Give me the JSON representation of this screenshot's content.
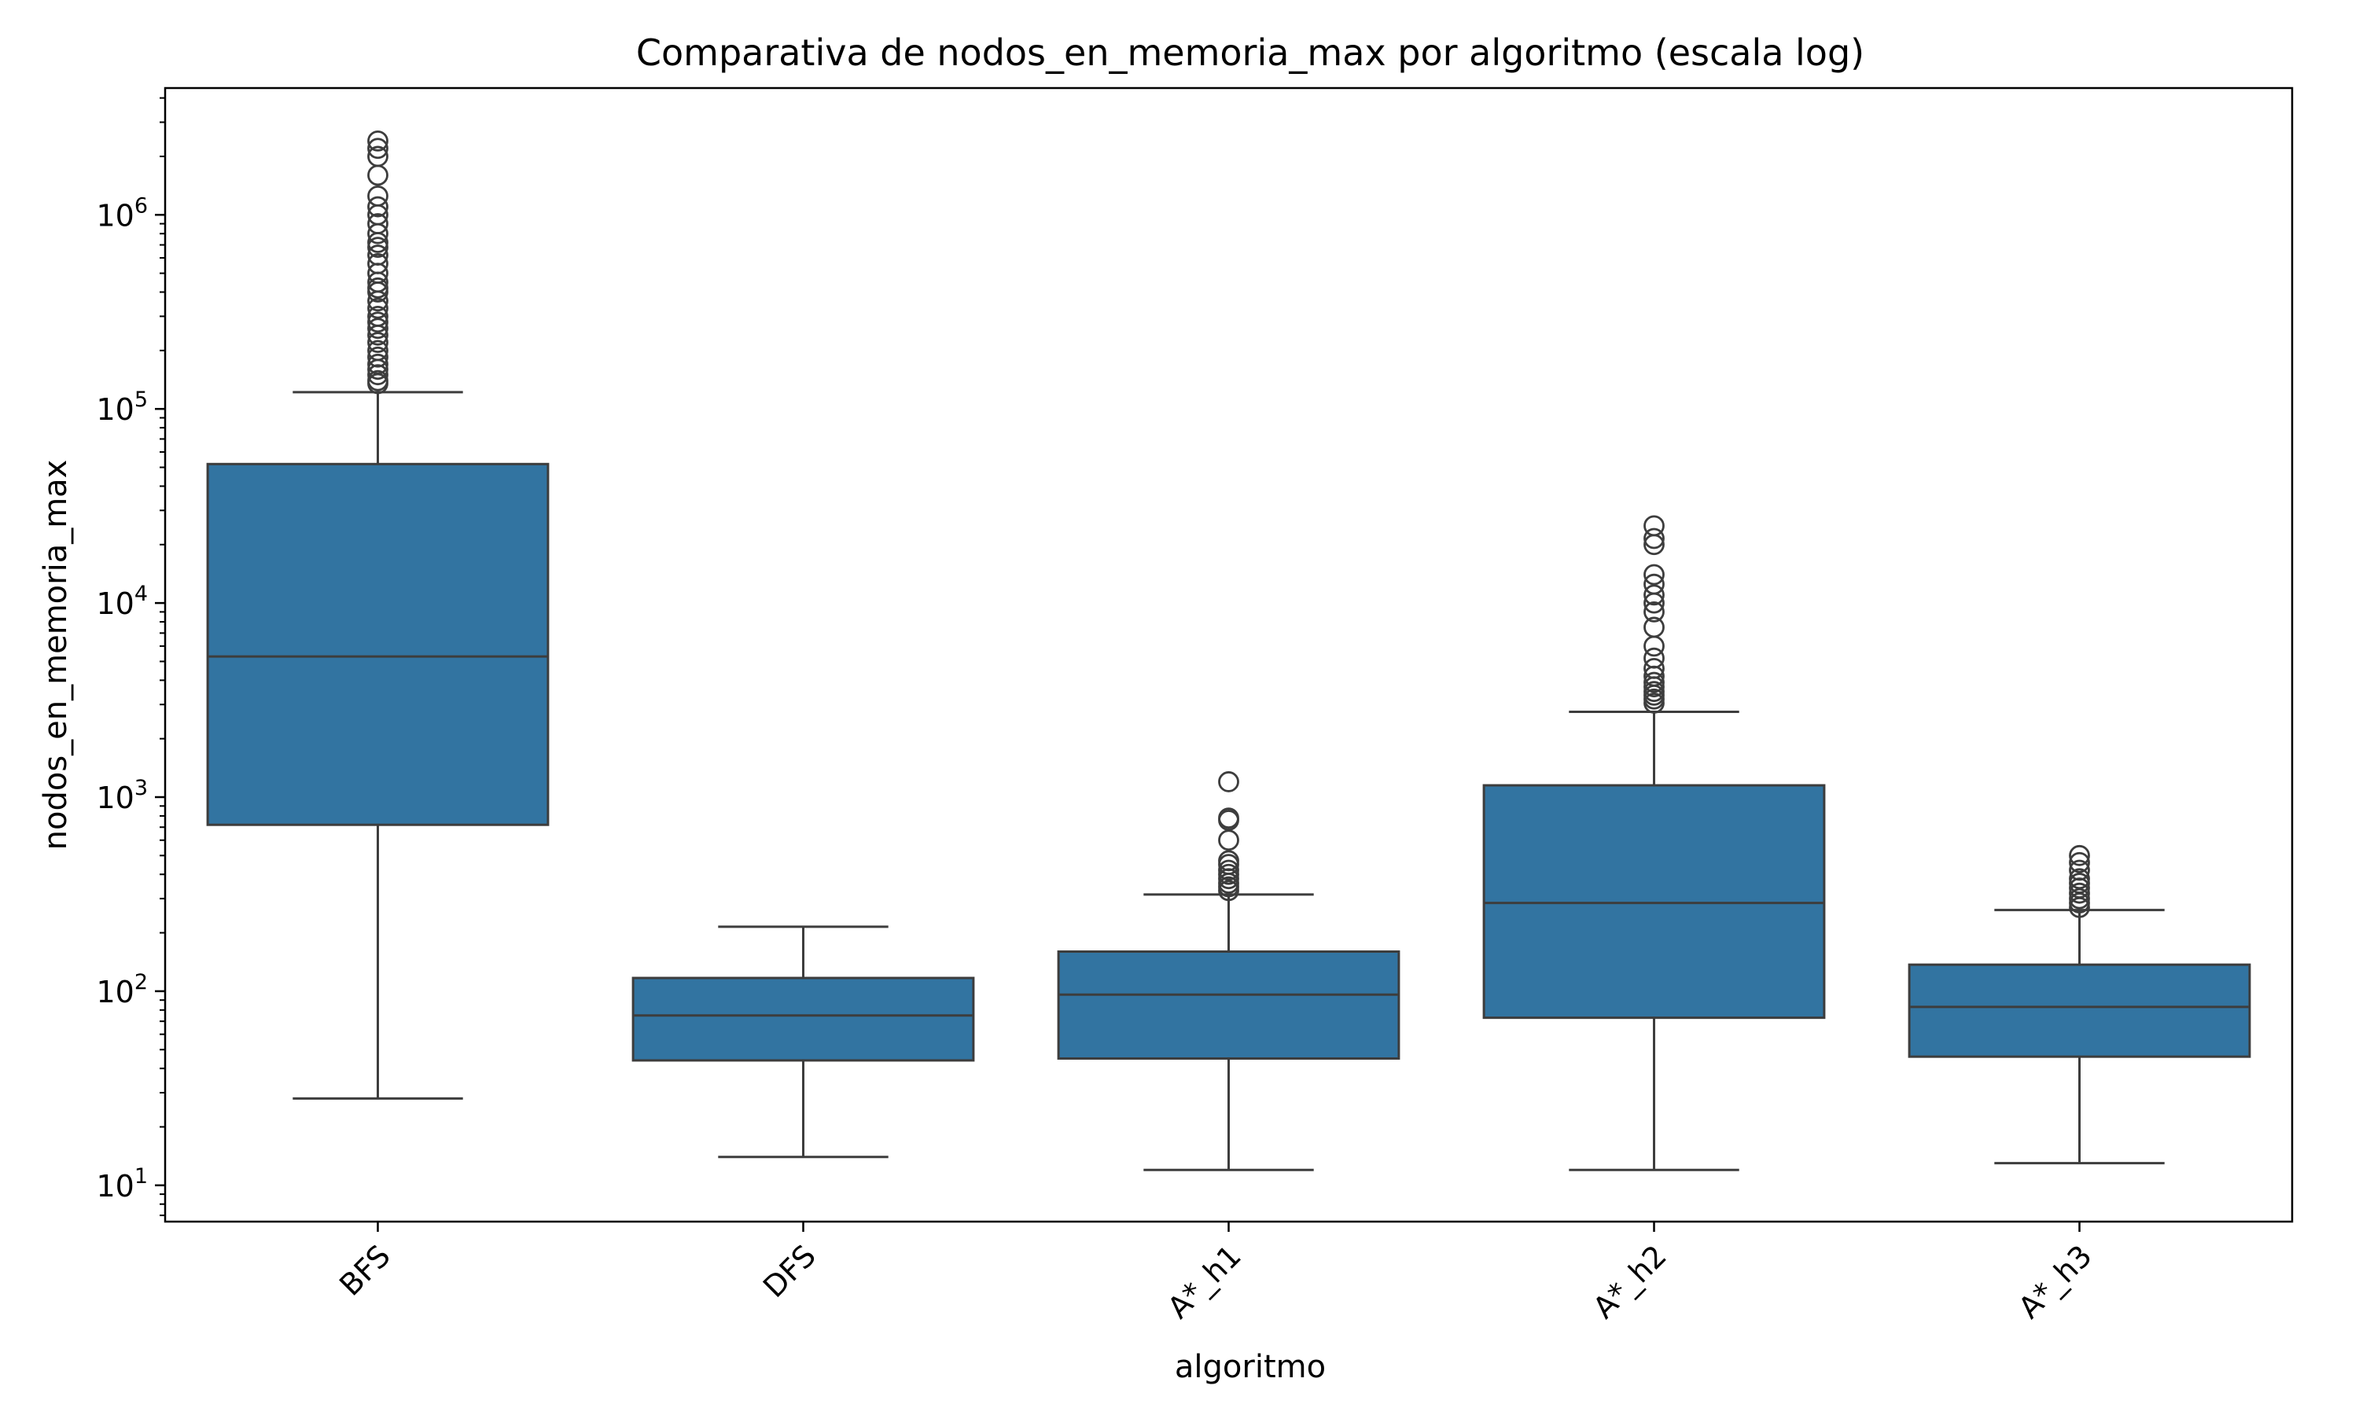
{
  "chart_data": {
    "type": "box",
    "title": "Comparativa de nodos_en_memoria_max por algoritmo (escala log)",
    "xlabel": "algoritmo",
    "ylabel": "nodos_en_memoria_max",
    "yscale": "log",
    "ylim": [
      6.5,
      4500000
    ],
    "yticks": [
      {
        "value": 10,
        "base": "10",
        "exp": "1"
      },
      {
        "value": 100,
        "base": "10",
        "exp": "2"
      },
      {
        "value": 1000,
        "base": "10",
        "exp": "3"
      },
      {
        "value": 10000,
        "base": "10",
        "exp": "4"
      },
      {
        "value": 100000,
        "base": "10",
        "exp": "5"
      },
      {
        "value": 1000000,
        "base": "10",
        "exp": "6"
      }
    ],
    "color": "#3274a1",
    "edge_color": "#3d3d3d",
    "categories": [
      "BFS",
      "DFS",
      "A*_h1",
      "A*_h2",
      "A*_h3"
    ],
    "boxes": [
      {
        "label": "BFS",
        "whislo": 28,
        "q1": 720,
        "med": 5300,
        "q3": 52000,
        "whishi": 122000,
        "fliers": [
          135000,
          140000,
          150000,
          160000,
          170000,
          185000,
          200000,
          220000,
          240000,
          260000,
          280000,
          300000,
          330000,
          360000,
          400000,
          420000,
          450000,
          500000,
          560000,
          620000,
          680000,
          720000,
          800000,
          900000,
          1000000,
          1100000,
          1250000,
          1600000,
          2000000,
          2200000,
          2400000
        ]
      },
      {
        "label": "DFS",
        "whislo": 14,
        "q1": 44,
        "med": 75,
        "q3": 117,
        "whishi": 215,
        "fliers": []
      },
      {
        "label": "A*_h1",
        "whislo": 12,
        "q1": 45,
        "med": 96,
        "q3": 160,
        "whishi": 315,
        "fliers": [
          330,
          345,
          360,
          380,
          400,
          420,
          450,
          470,
          600,
          760,
          780,
          1200
        ]
      },
      {
        "label": "A*_h2",
        "whislo": 12,
        "q1": 73,
        "med": 285,
        "q3": 1150,
        "whishi": 2750,
        "fliers": [
          3050,
          3200,
          3350,
          3500,
          3700,
          3900,
          4200,
          4600,
          5200,
          6000,
          7500,
          9000,
          10000,
          11000,
          12500,
          14000,
          20000,
          21500,
          25000
        ]
      },
      {
        "label": "A*_h3",
        "whislo": 13,
        "q1": 46,
        "med": 83,
        "q3": 137,
        "whishi": 262,
        "fliers": [
          270,
          285,
          300,
          320,
          340,
          360,
          380,
          420,
          460,
          500
        ]
      }
    ]
  }
}
